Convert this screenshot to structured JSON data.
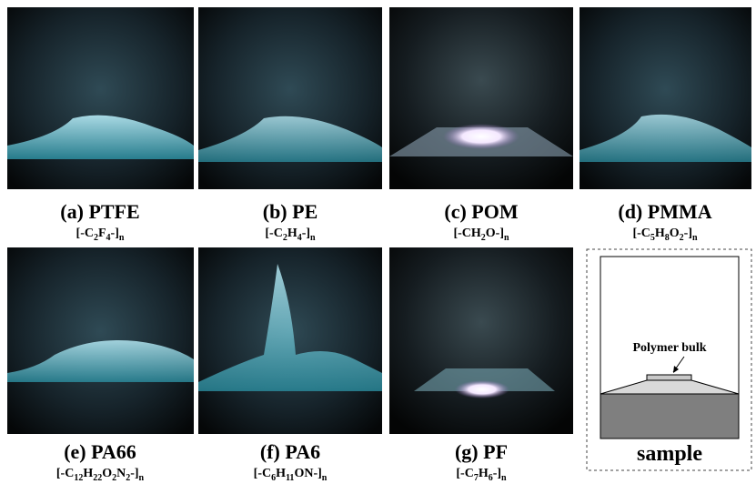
{
  "panels": [
    {
      "label": "(a) PTFE",
      "formula": [
        "[-C",
        "2",
        "F",
        "4",
        "-]",
        "n"
      ]
    },
    {
      "label": "(b) PE",
      "formula": [
        "[-C",
        "2",
        "H",
        "4",
        "-]",
        "n"
      ]
    },
    {
      "label": "(c) POM",
      "formula": [
        "[-CH",
        "2",
        "O-]",
        "n"
      ]
    },
    {
      "label": "(d) PMMA",
      "formula": [
        "[-C",
        "5",
        "H",
        "8",
        "O",
        "2",
        "-]",
        "n"
      ]
    },
    {
      "label": "(e) PA66",
      "formula": [
        "[-C",
        "12",
        "H",
        "22",
        "O",
        "2",
        "N",
        "2",
        "-]",
        "n"
      ]
    },
    {
      "label": "(f) PA6",
      "formula": [
        "[-C",
        "6",
        "H",
        "11",
        "ON-]",
        "n"
      ]
    },
    {
      "label": "(g) PF",
      "formula": [
        "[-C",
        "7",
        "H",
        "6",
        "-]",
        "n"
      ]
    }
  ],
  "diagram": {
    "annotation": "Polymer bulk",
    "caption": "sample"
  }
}
